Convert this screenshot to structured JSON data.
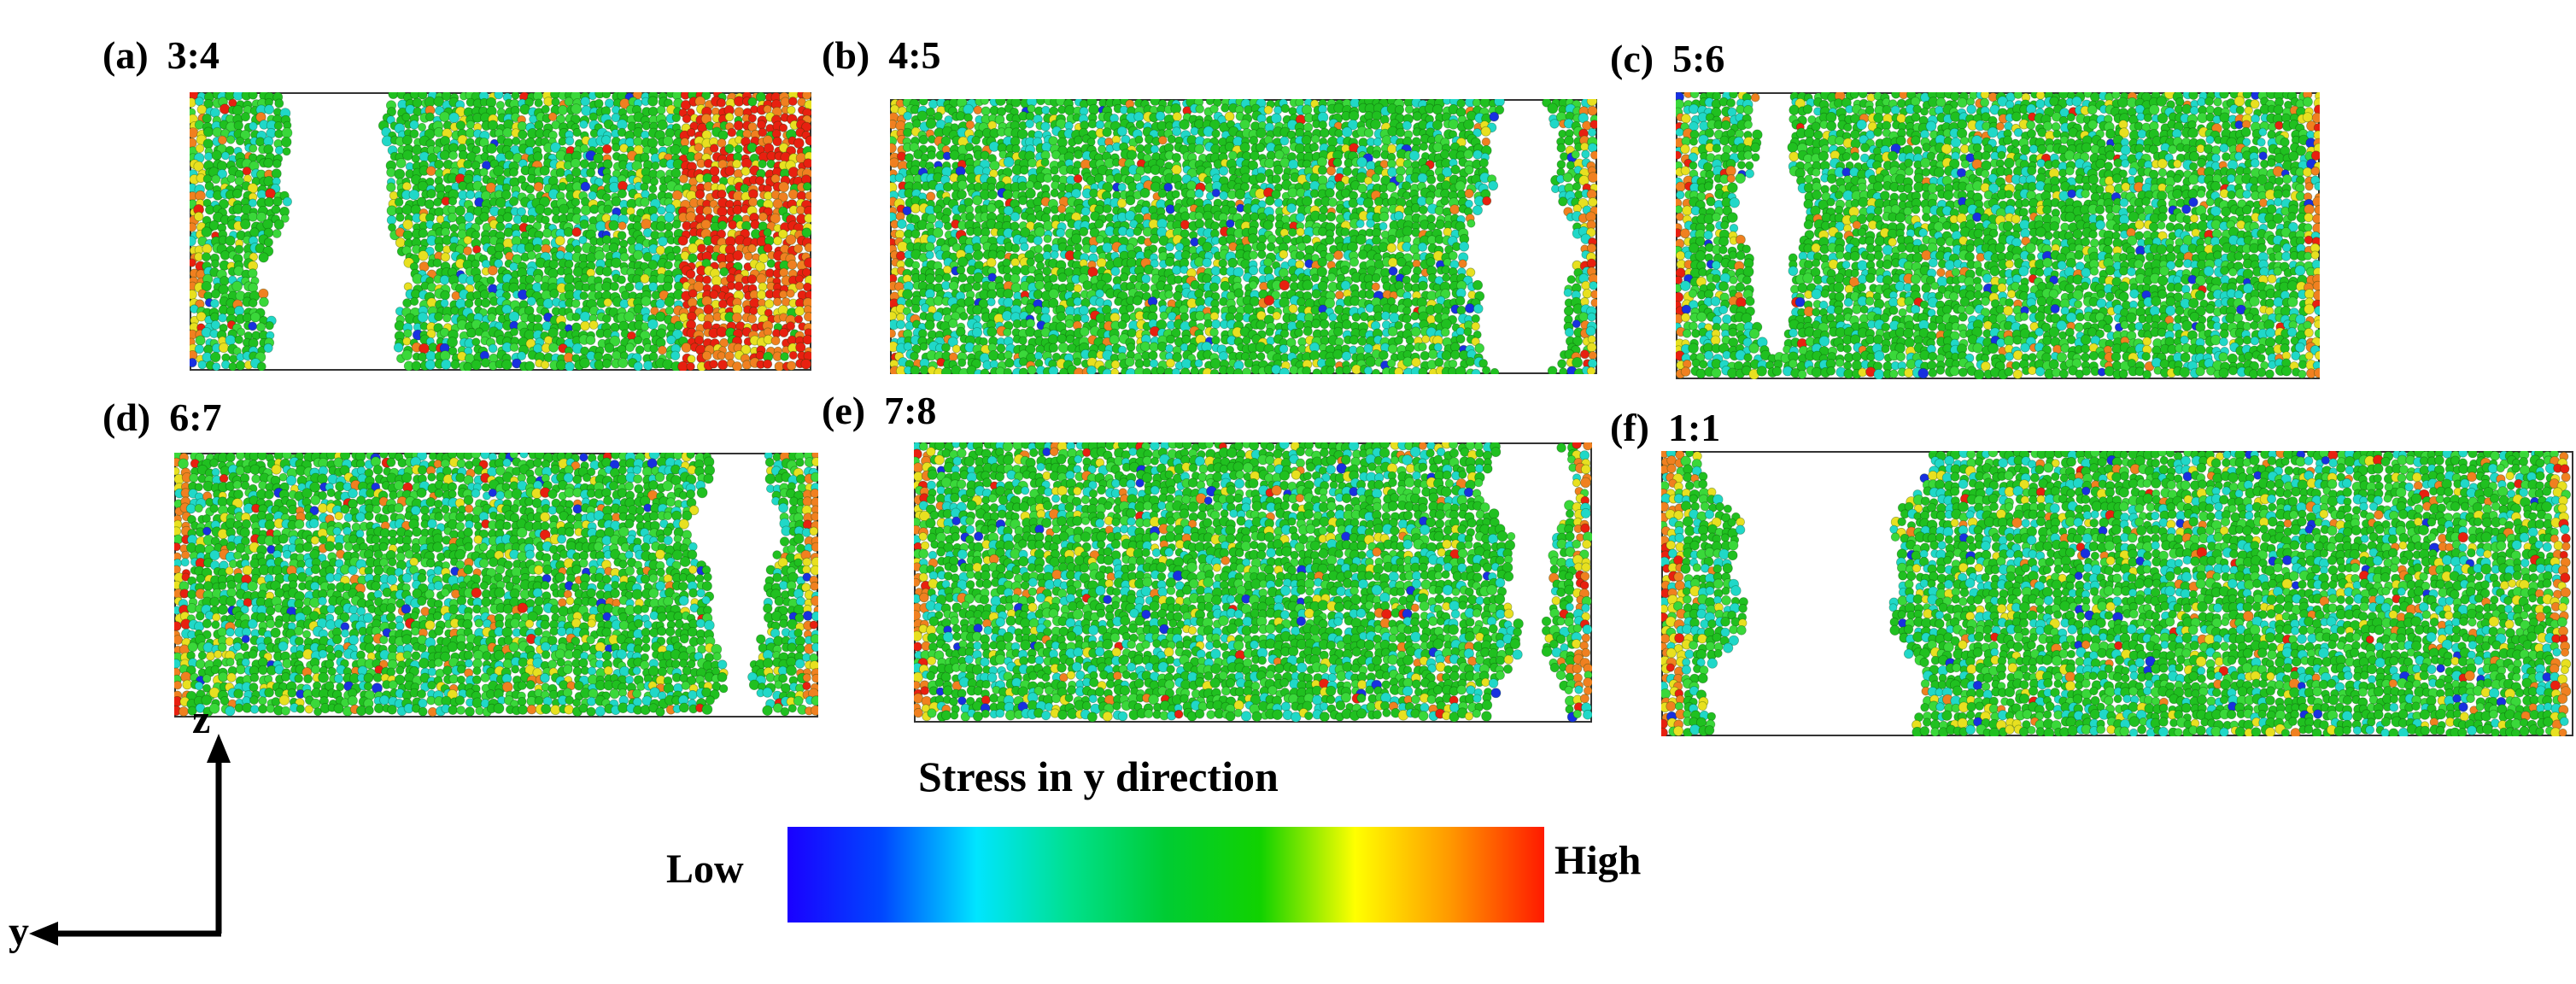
{
  "panels": [
    {
      "id": "a",
      "label": "(a)",
      "ratio": "3:4",
      "gap_side": "left",
      "hot_band": true
    },
    {
      "id": "b",
      "label": "(b)",
      "ratio": "4:5",
      "gap_side": "right",
      "hot_band": false
    },
    {
      "id": "c",
      "label": "(c)",
      "ratio": "5:6",
      "gap_side": "left",
      "hot_band": false
    },
    {
      "id": "d",
      "label": "(d)",
      "ratio": "6:7",
      "gap_side": "right",
      "hot_band": false
    },
    {
      "id": "e",
      "label": "(e)",
      "ratio": "7:8",
      "gap_side": "right",
      "hot_band": false
    },
    {
      "id": "f",
      "label": "(f)",
      "ratio": "1:1",
      "gap_side": "left",
      "hot_band": false
    }
  ],
  "colorbar": {
    "title": "Stress in y direction",
    "low_label": "Low",
    "high_label": "High",
    "colors": [
      "#1a00ff",
      "#0047ff",
      "#00e5ff",
      "#00e08c",
      "#00cc33",
      "#11d200",
      "#ffff00",
      "#ff9900",
      "#ff1a00"
    ]
  },
  "axes": {
    "vertical": "z",
    "horizontal": "y"
  },
  "particle_colors": {
    "green": "#20c020",
    "light_green": "#3ad83a",
    "cyan": "#20d8c8",
    "yellow": "#e8e020",
    "orange": "#f08020",
    "red": "#e82010",
    "blue": "#1830e0"
  }
}
